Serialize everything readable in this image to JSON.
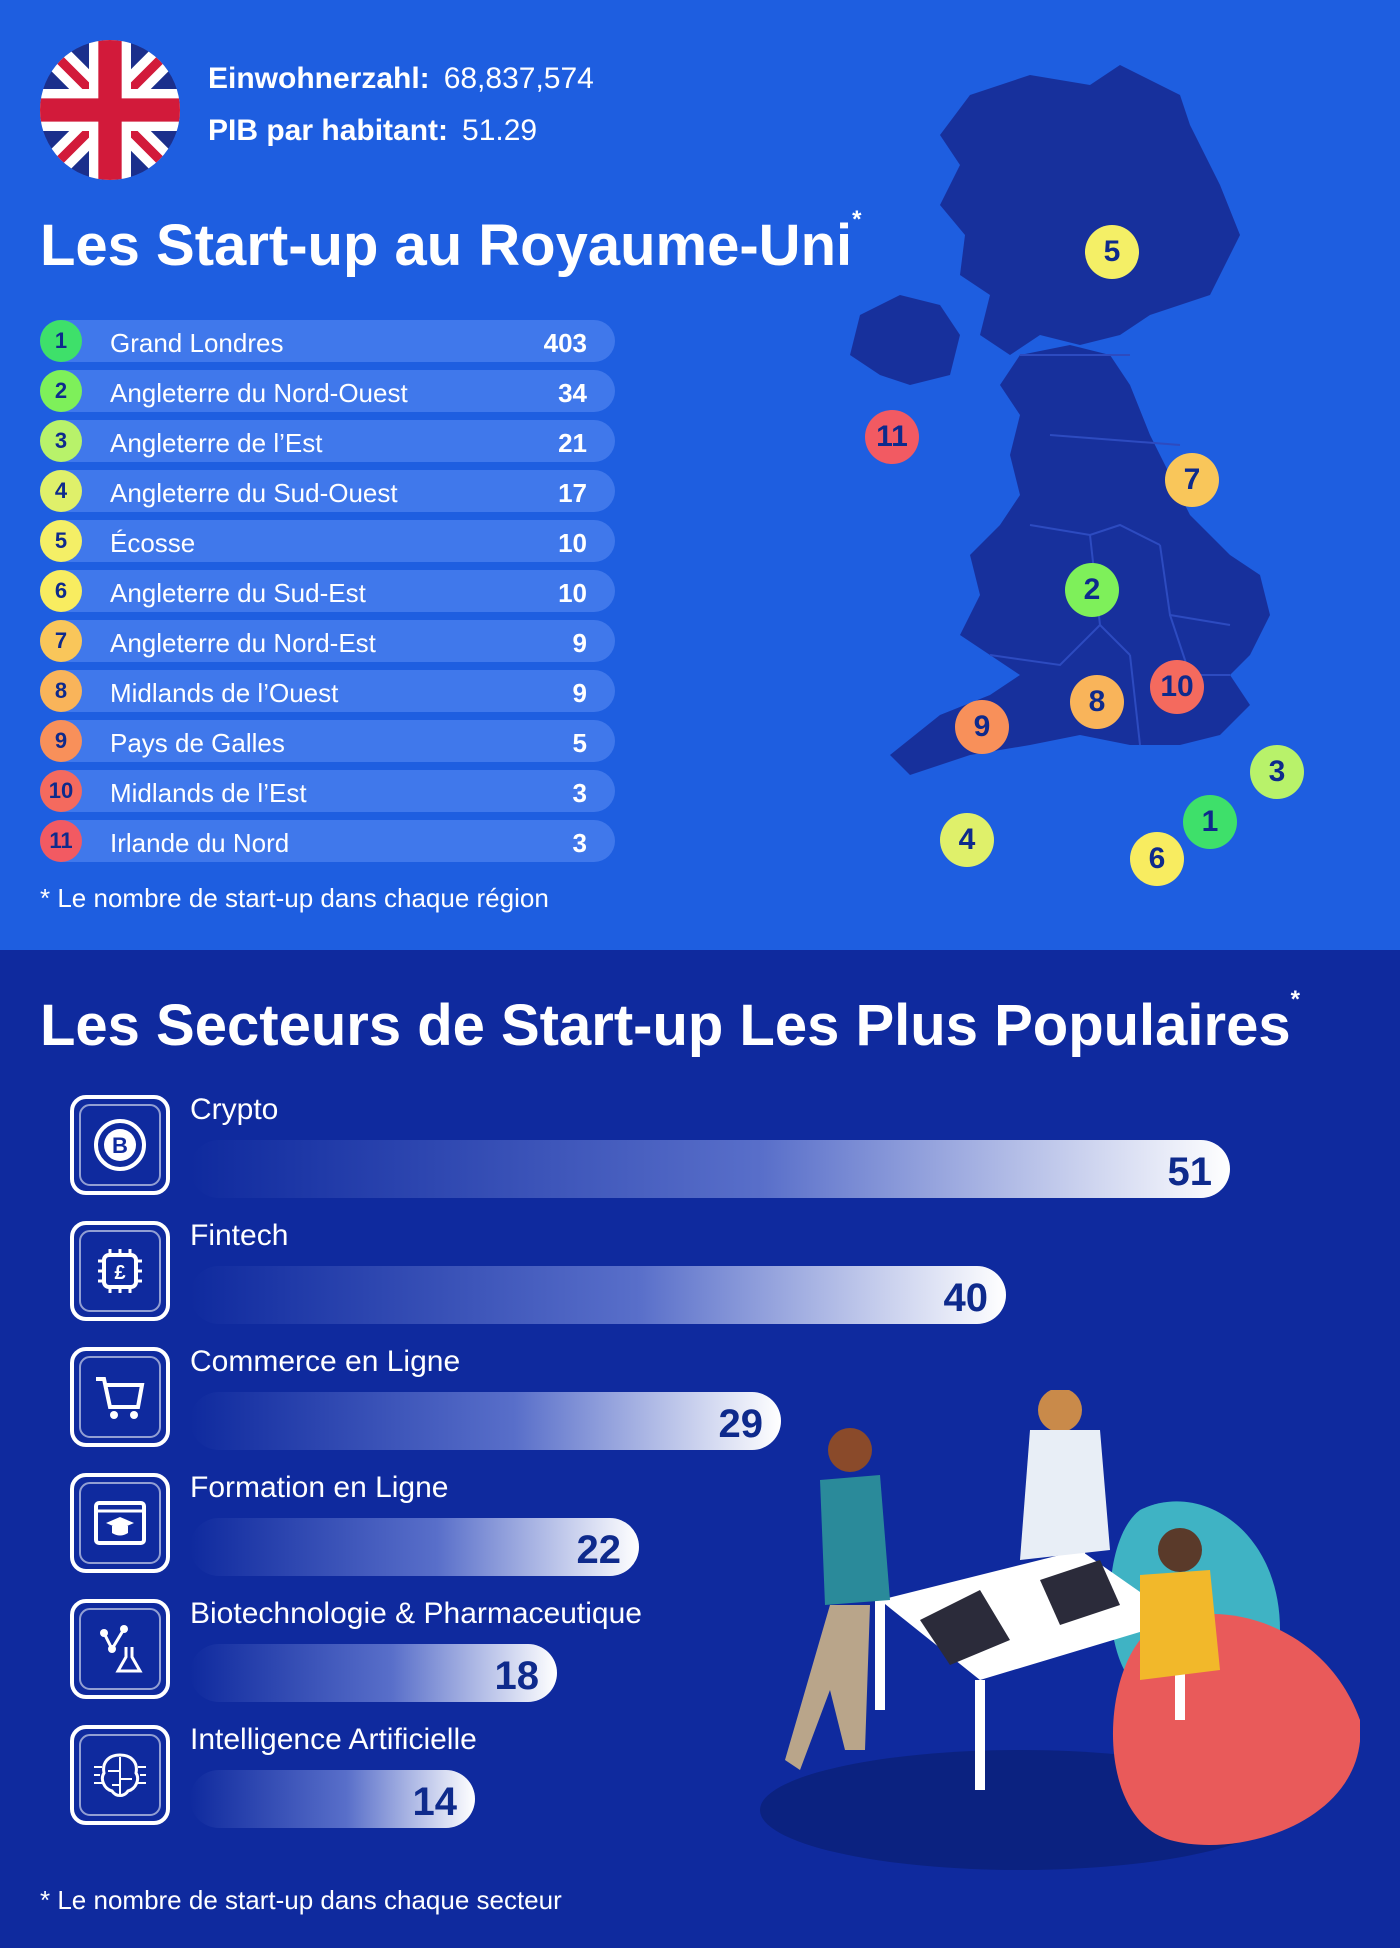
{
  "header": {
    "population_label": "Einwohnerzahl:",
    "population_value": "68,837,574",
    "gdp_label": "PIB par habitant:",
    "gdp_value": "51.29",
    "title": "Les Start-up au Royaume-Uni",
    "title_mark": "*"
  },
  "regions": [
    {
      "rank": "1",
      "name": "Grand Londres",
      "value": "403",
      "color": "#3ee06a"
    },
    {
      "rank": "2",
      "name": "Angleterre du Nord-Ouest",
      "value": "34",
      "color": "#7ef05a"
    },
    {
      "rank": "3",
      "name": "Angleterre de l’Est",
      "value": "21",
      "color": "#b8f26a"
    },
    {
      "rank": "4",
      "name": "Angleterre du Sud-Ouest",
      "value": "17",
      "color": "#dff06a"
    },
    {
      "rank": "5",
      "name": "Écosse",
      "value": "10",
      "color": "#f4ef66"
    },
    {
      "rank": "6",
      "name": "Angleterre du Sud-Est",
      "value": "10",
      "color": "#f8ec60"
    },
    {
      "rank": "7",
      "name": "Angleterre du Nord-Est",
      "value": "9",
      "color": "#f9c65a"
    },
    {
      "rank": "8",
      "name": "Midlands de l’Ouest",
      "value": "9",
      "color": "#f9b45a"
    },
    {
      "rank": "9",
      "name": "Pays de Galles",
      "value": "5",
      "color": "#f8905a"
    },
    {
      "rank": "10",
      "name": "Midlands de l’Est",
      "value": "3",
      "color": "#f46a5e"
    },
    {
      "rank": "11",
      "name": "Irlande du Nord",
      "value": "3",
      "color": "#f25a62"
    }
  ],
  "regions_note": "* Le nombre de start-up dans chaque région",
  "sectors_title": "Les Secteurs de Start-up Les Plus Populaires",
  "sectors_title_mark": "*",
  "chart_data": {
    "type": "bar",
    "categories": [
      "Crypto",
      "Fintech",
      "Commerce en Ligne",
      "Formation en Ligne",
      "Biotechnologie & Pharmaceutique",
      "Intelligence Artificielle"
    ],
    "values": [
      51,
      40,
      29,
      22,
      18,
      14
    ],
    "value_labels": [
      "51",
      "40",
      "29",
      "22",
      "18",
      "14"
    ],
    "title": "Les Secteurs de Start-up Les Plus Populaires",
    "orientation": "horizontal",
    "icons": [
      "bitcoin-icon",
      "pound-chip-icon",
      "shopping-cart-icon",
      "graduation-cap-icon",
      "molecule-flask-icon",
      "ai-brain-icon"
    ],
    "xlim": [
      0,
      51
    ],
    "grid": false
  },
  "sectors_note": "* Le nombre de start-up dans chaque secteur",
  "colors": {
    "top_bg": "#1e5ee0",
    "bottom_bg": "#0f2a9e",
    "map": "#17309c",
    "dark_text": "#0e2a8c"
  }
}
